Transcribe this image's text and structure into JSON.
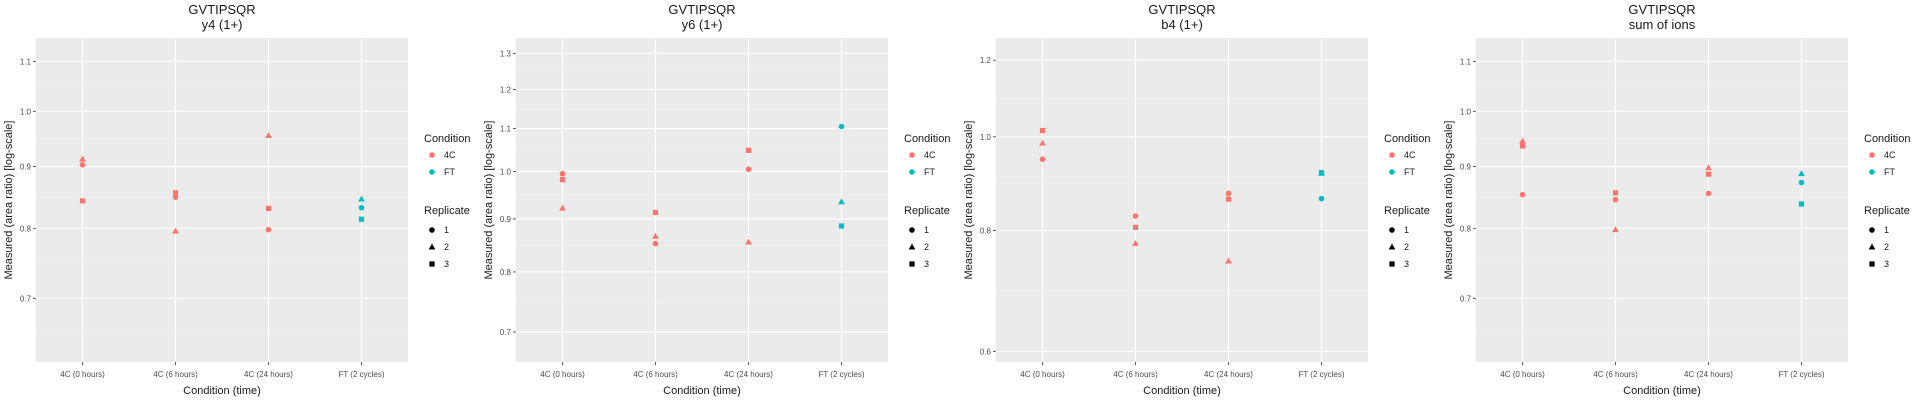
{
  "chart_data": [
    {
      "type": "scatter",
      "title": "GVTIPSQR",
      "subtitle": "y4 (1+)",
      "xlabel": "Condition (time)",
      "ylabel": "Measured (area ratio) [log-scale]",
      "categories": [
        "4C (0 hours)",
        "4C (6 hours)",
        "4C (24 hours)",
        "FT (2 cycles)"
      ],
      "y_scale": "log",
      "ylim": [
        0.62,
        1.15
      ],
      "yticks": [
        0.7,
        0.8,
        0.9,
        1.0,
        1.1
      ],
      "ytick_labels": [
        "0.7",
        "0.8",
        "0.9",
        "1.0",
        "1.1"
      ],
      "grid": true,
      "legend_position": "right",
      "points": [
        {
          "category": "4C (0 hours)",
          "value": 0.903,
          "condition": "4C",
          "replicate": "1"
        },
        {
          "category": "4C (0 hours)",
          "value": 0.913,
          "condition": "4C",
          "replicate": "2"
        },
        {
          "category": "4C (0 hours)",
          "value": 0.843,
          "condition": "4C",
          "replicate": "3"
        },
        {
          "category": "4C (6 hours)",
          "value": 0.849,
          "condition": "4C",
          "replicate": "1"
        },
        {
          "category": "4C (6 hours)",
          "value": 0.796,
          "condition": "4C",
          "replicate": "2"
        },
        {
          "category": "4C (6 hours)",
          "value": 0.856,
          "condition": "4C",
          "replicate": "3"
        },
        {
          "category": "4C (24 hours)",
          "value": 0.798,
          "condition": "4C",
          "replicate": "1"
        },
        {
          "category": "4C (24 hours)",
          "value": 0.955,
          "condition": "4C",
          "replicate": "2"
        },
        {
          "category": "4C (24 hours)",
          "value": 0.831,
          "condition": "4C",
          "replicate": "3"
        },
        {
          "category": "FT (2 cycles)",
          "value": 0.832,
          "condition": "FT",
          "replicate": "1"
        },
        {
          "category": "FT (2 cycles)",
          "value": 0.846,
          "condition": "FT",
          "replicate": "2"
        },
        {
          "category": "FT (2 cycles)",
          "value": 0.814,
          "condition": "FT",
          "replicate": "3"
        }
      ]
    },
    {
      "type": "scatter",
      "title": "GVTIPSQR",
      "subtitle": "y6 (1+)",
      "xlabel": "Condition (time)",
      "ylabel": "Measured (area ratio) [log-scale]",
      "categories": [
        "4C (0 hours)",
        "4C (6 hours)",
        "4C (24 hours)",
        "FT (2 cycles)"
      ],
      "y_scale": "log",
      "ylim": [
        0.655,
        1.345
      ],
      "yticks": [
        0.7,
        0.8,
        0.9,
        1.0,
        1.1,
        1.2,
        1.3
      ],
      "ytick_labels": [
        "0.7",
        "0.8",
        "0.9",
        "1.0",
        "1.1",
        "1.2",
        "1.3"
      ],
      "grid": true,
      "legend_position": "right",
      "points": [
        {
          "category": "4C (0 hours)",
          "value": 0.995,
          "condition": "4C",
          "replicate": "1"
        },
        {
          "category": "4C (0 hours)",
          "value": 0.922,
          "condition": "4C",
          "replicate": "2"
        },
        {
          "category": "4C (0 hours)",
          "value": 0.982,
          "condition": "4C",
          "replicate": "3"
        },
        {
          "category": "4C (6 hours)",
          "value": 0.852,
          "condition": "4C",
          "replicate": "1"
        },
        {
          "category": "4C (6 hours)",
          "value": 0.866,
          "condition": "4C",
          "replicate": "2"
        },
        {
          "category": "4C (6 hours)",
          "value": 0.913,
          "condition": "4C",
          "replicate": "3"
        },
        {
          "category": "4C (24 hours)",
          "value": 1.005,
          "condition": "4C",
          "replicate": "1"
        },
        {
          "category": "4C (24 hours)",
          "value": 0.855,
          "condition": "4C",
          "replicate": "2"
        },
        {
          "category": "4C (24 hours)",
          "value": 1.048,
          "condition": "4C",
          "replicate": "3"
        },
        {
          "category": "FT (2 cycles)",
          "value": 1.105,
          "condition": "FT",
          "replicate": "1"
        },
        {
          "category": "FT (2 cycles)",
          "value": 0.935,
          "condition": "FT",
          "replicate": "2"
        },
        {
          "category": "FT (2 cycles)",
          "value": 0.886,
          "condition": "FT",
          "replicate": "3"
        }
      ]
    },
    {
      "type": "scatter",
      "title": "GVTIPSQR",
      "subtitle": "b4 (1+)",
      "xlabel": "Condition (time)",
      "ylabel": "Measured (area ratio) [log-scale]",
      "categories": [
        "4C (0 hours)",
        "4C (6 hours)",
        "4C (24 hours)",
        "FT (2 cycles)"
      ],
      "y_scale": "log",
      "ylim": [
        0.585,
        1.265
      ],
      "yticks": [
        0.6,
        0.8,
        1.0,
        1.2
      ],
      "ytick_labels": [
        "0.6",
        "0.8",
        "1.0",
        "1.2"
      ],
      "grid": true,
      "legend_position": "right",
      "points": [
        {
          "category": "4C (0 hours)",
          "value": 0.948,
          "condition": "4C",
          "replicate": "1"
        },
        {
          "category": "4C (0 hours)",
          "value": 0.985,
          "condition": "4C",
          "replicate": "2"
        },
        {
          "category": "4C (0 hours)",
          "value": 1.015,
          "condition": "4C",
          "replicate": "3"
        },
        {
          "category": "4C (6 hours)",
          "value": 0.828,
          "condition": "4C",
          "replicate": "1"
        },
        {
          "category": "4C (6 hours)",
          "value": 0.776,
          "condition": "4C",
          "replicate": "2"
        },
        {
          "category": "4C (6 hours)",
          "value": 0.806,
          "condition": "4C",
          "replicate": "3"
        },
        {
          "category": "4C (24 hours)",
          "value": 0.874,
          "condition": "4C",
          "replicate": "1"
        },
        {
          "category": "4C (24 hours)",
          "value": 0.744,
          "condition": "4C",
          "replicate": "2"
        },
        {
          "category": "4C (24 hours)",
          "value": 0.862,
          "condition": "4C",
          "replicate": "3"
        },
        {
          "category": "FT (2 cycles)",
          "value": 0.863,
          "condition": "FT",
          "replicate": "1"
        },
        {
          "category": "FT (2 cycles)",
          "value": 0.917,
          "condition": "FT",
          "replicate": "2"
        },
        {
          "category": "FT (2 cycles)",
          "value": 0.918,
          "condition": "FT",
          "replicate": "3"
        }
      ]
    },
    {
      "type": "scatter",
      "title": "GVTIPSQR",
      "subtitle": "sum of ions",
      "xlabel": "Condition (time)",
      "ylabel": "Measured (area ratio) [log-scale]",
      "categories": [
        "4C (0 hours)",
        "4C (6 hours)",
        "4C (24 hours)",
        "FT (2 cycles)"
      ],
      "y_scale": "log",
      "ylim": [
        0.62,
        1.15
      ],
      "yticks": [
        0.7,
        0.8,
        0.9,
        1.0,
        1.1
      ],
      "ytick_labels": [
        "0.7",
        "0.8",
        "0.9",
        "1.0",
        "1.1"
      ],
      "grid": true,
      "legend_position": "right",
      "points": [
        {
          "category": "4C (0 hours)",
          "value": 0.853,
          "condition": "4C",
          "replicate": "1"
        },
        {
          "category": "4C (0 hours)",
          "value": 0.945,
          "condition": "4C",
          "replicate": "2"
        },
        {
          "category": "4C (0 hours)",
          "value": 0.936,
          "condition": "4C",
          "replicate": "3"
        },
        {
          "category": "4C (6 hours)",
          "value": 0.845,
          "condition": "4C",
          "replicate": "1"
        },
        {
          "category": "4C (6 hours)",
          "value": 0.798,
          "condition": "4C",
          "replicate": "2"
        },
        {
          "category": "4C (6 hours)",
          "value": 0.856,
          "condition": "4C",
          "replicate": "3"
        },
        {
          "category": "4C (24 hours)",
          "value": 0.855,
          "condition": "4C",
          "replicate": "1"
        },
        {
          "category": "4C (24 hours)",
          "value": 0.898,
          "condition": "4C",
          "replicate": "2"
        },
        {
          "category": "4C (24 hours)",
          "value": 0.887,
          "condition": "4C",
          "replicate": "3"
        },
        {
          "category": "FT (2 cycles)",
          "value": 0.873,
          "condition": "FT",
          "replicate": "1"
        },
        {
          "category": "FT (2 cycles)",
          "value": 0.888,
          "condition": "FT",
          "replicate": "2"
        },
        {
          "category": "FT (2 cycles)",
          "value": 0.838,
          "condition": "FT",
          "replicate": "3"
        }
      ]
    }
  ],
  "legend": {
    "color_title": "Condition",
    "color_entries": [
      {
        "label": "4C",
        "color": "#F8766D"
      },
      {
        "label": "FT",
        "color": "#00BFC4"
      }
    ],
    "shape_title": "Replicate",
    "shape_entries": [
      {
        "label": "1",
        "shape": "circle"
      },
      {
        "label": "2",
        "shape": "triangle"
      },
      {
        "label": "3",
        "shape": "square"
      }
    ]
  },
  "colors": {
    "panel_background": "#EBEBEB",
    "grid_major": "#FFFFFF",
    "grid_minor": "#F2F2F2",
    "text": "#1A1A1A",
    "tick_text": "#4D4D4D"
  }
}
